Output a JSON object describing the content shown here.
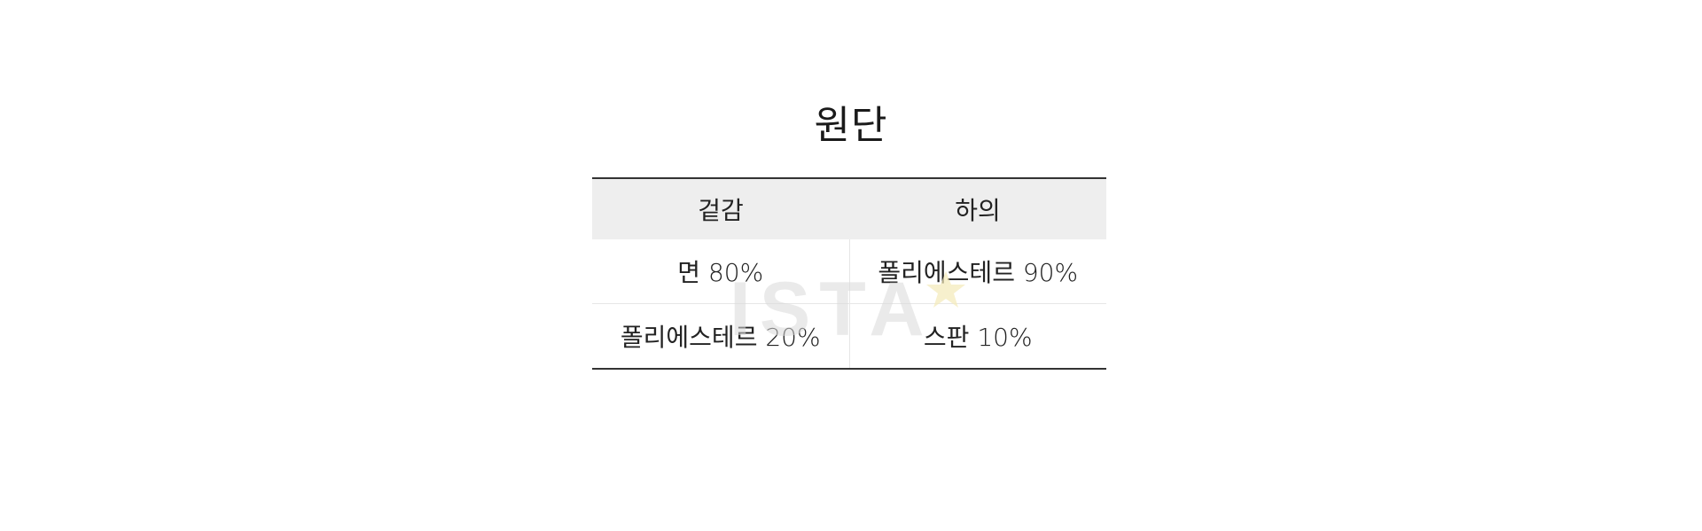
{
  "title": "원단",
  "table": {
    "headers": [
      "겉감",
      "하의"
    ],
    "rows": [
      [
        "면 80%",
        "폴리에스테르 90%"
      ],
      [
        "폴리에스테르 20%",
        "스판 10%"
      ]
    ]
  },
  "watermark": {
    "text": "ISTA",
    "color": "#d9d9d9",
    "star_color": "#f3e9b8"
  },
  "colors": {
    "header_bg": "#eeeeee",
    "rule": "#333333",
    "cell_divider": "#e6e6e6"
  }
}
